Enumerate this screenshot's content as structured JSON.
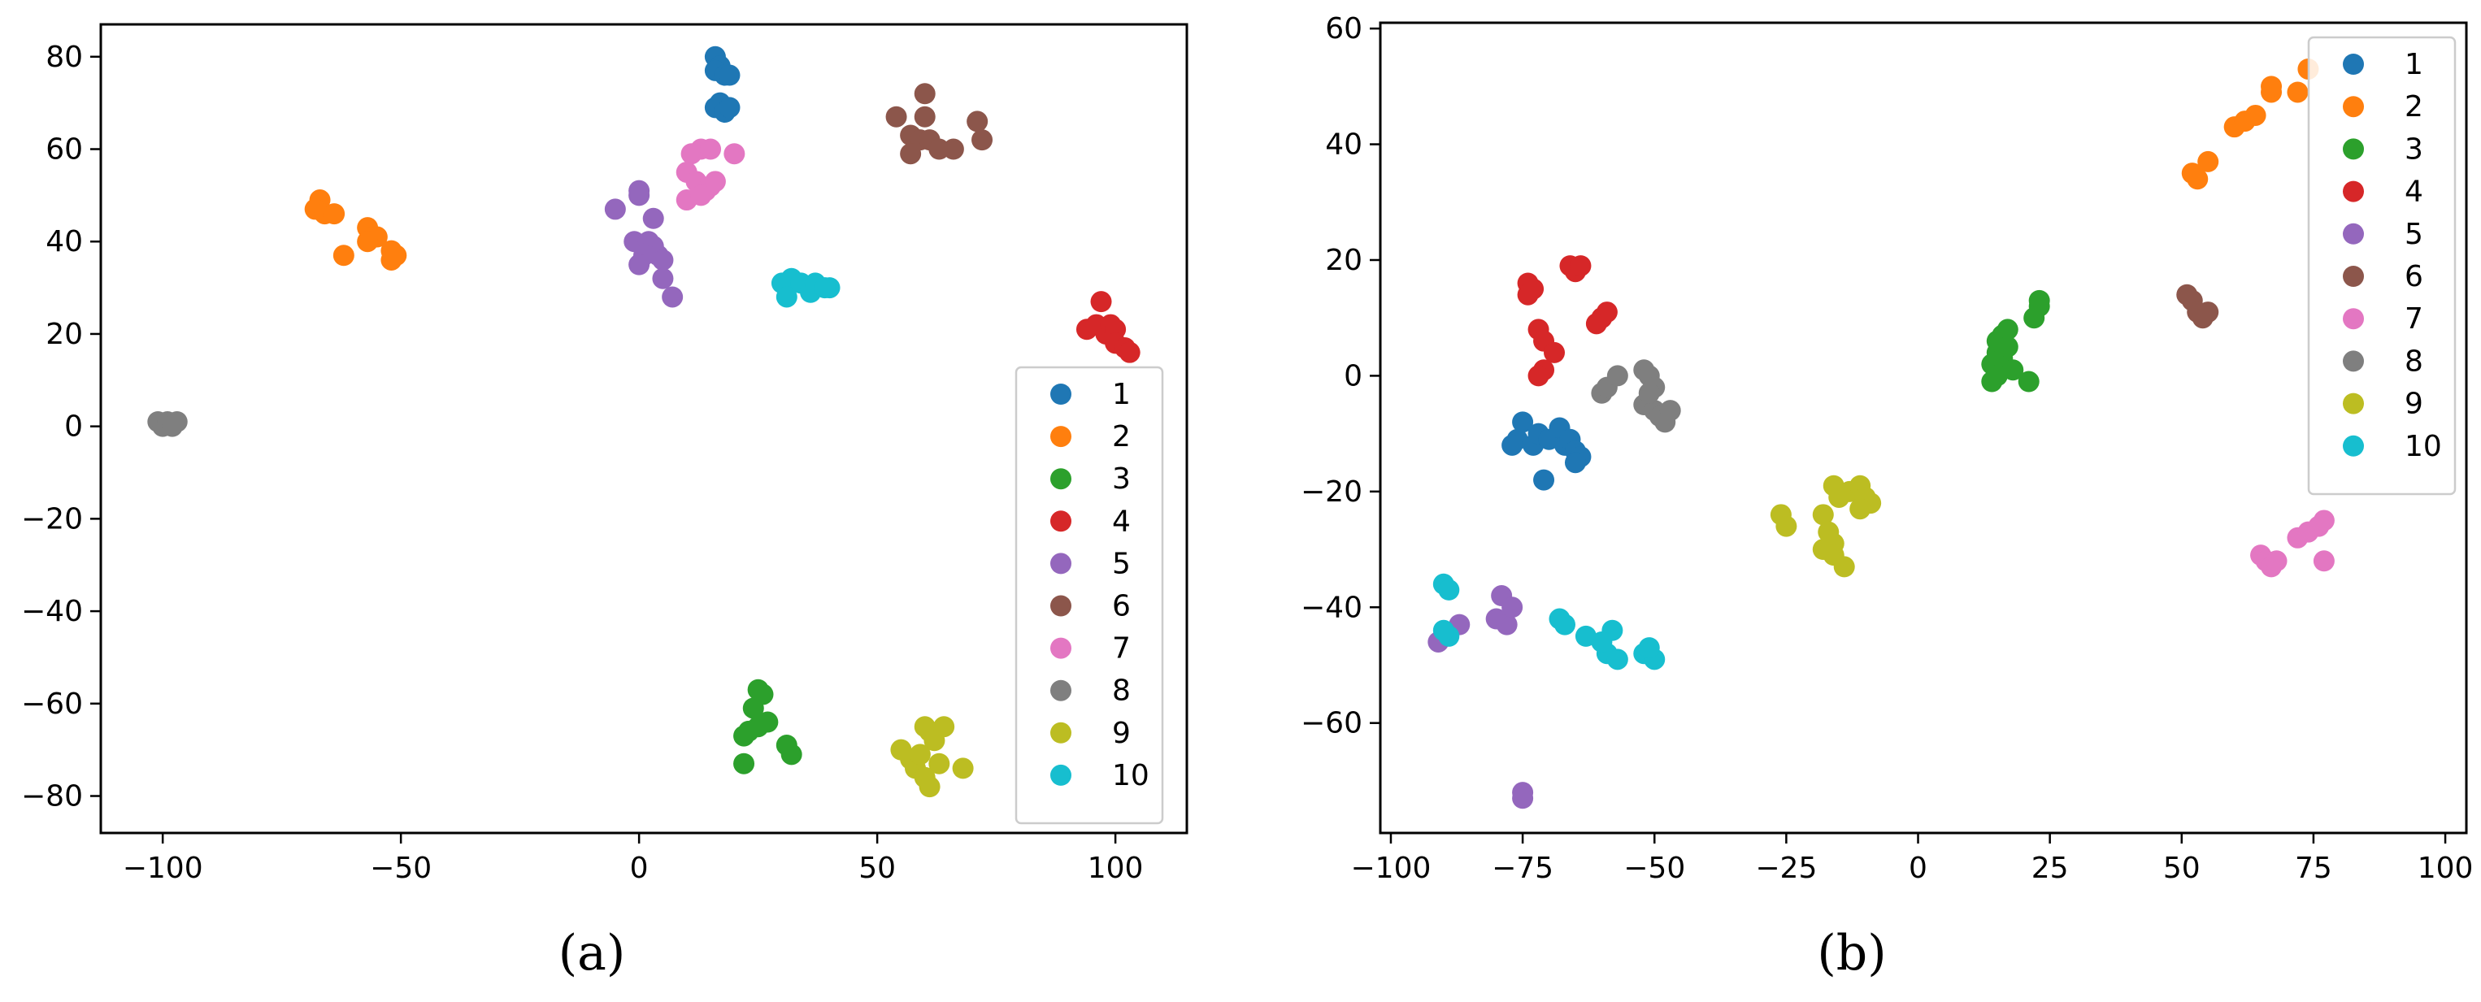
{
  "captions": {
    "a": "(a)",
    "b": "(b)"
  },
  "legend_labels": [
    "1",
    "2",
    "3",
    "4",
    "5",
    "6",
    "7",
    "8",
    "9",
    "10"
  ],
  "colors": [
    "#1f77b4",
    "#ff7f0e",
    "#2ca02c",
    "#d62728",
    "#9467bd",
    "#8c564b",
    "#e377c2",
    "#7f7f7f",
    "#bcbd22",
    "#17becf"
  ],
  "chart_data": [
    {
      "type": "scatter",
      "panel": "a",
      "title": "",
      "xlabel": "",
      "ylabel": "",
      "xlim": [
        -113,
        115
      ],
      "ylim": [
        -88,
        87
      ],
      "xticks": [
        -100,
        -50,
        0,
        50,
        100
      ],
      "yticks": [
        80,
        60,
        40,
        20,
        0,
        -20,
        -40,
        -60,
        -80
      ],
      "legend": "right",
      "series": [
        {
          "name": "1",
          "points": [
            [
              16,
              80
            ],
            [
              17,
              78
            ],
            [
              16,
              77
            ],
            [
              18,
              76
            ],
            [
              19,
              76
            ],
            [
              17,
              70
            ],
            [
              16,
              69
            ],
            [
              18,
              68
            ],
            [
              19,
              69
            ]
          ]
        },
        {
          "name": "2",
          "points": [
            [
              -67,
              49
            ],
            [
              -68,
              47
            ],
            [
              -66,
              46
            ],
            [
              -64,
              46
            ],
            [
              -62,
              37
            ],
            [
              -57,
              43
            ],
            [
              -56,
              41
            ],
            [
              -55,
              41
            ],
            [
              -57,
              40
            ],
            [
              -52,
              38
            ],
            [
              -52,
              36
            ],
            [
              -51,
              37
            ]
          ]
        },
        {
          "name": "3",
          "points": [
            [
              25,
              -57
            ],
            [
              26,
              -58
            ],
            [
              24,
              -61
            ],
            [
              27,
              -64
            ],
            [
              25,
              -65
            ],
            [
              23,
              -66
            ],
            [
              22,
              -67
            ],
            [
              22,
              -73
            ],
            [
              31,
              -69
            ],
            [
              32,
              -71
            ]
          ]
        },
        {
          "name": "4",
          "points": [
            [
              97,
              27
            ],
            [
              94,
              21
            ],
            [
              96,
              22
            ],
            [
              98,
              20
            ],
            [
              99,
              22
            ],
            [
              100,
              21
            ],
            [
              100,
              18
            ],
            [
              102,
              17
            ],
            [
              103,
              16
            ]
          ]
        },
        {
          "name": "5",
          "points": [
            [
              -5,
              47
            ],
            [
              0,
              51
            ],
            [
              0,
              50
            ],
            [
              3,
              45
            ],
            [
              -1,
              40
            ],
            [
              2,
              40
            ],
            [
              3,
              39
            ],
            [
              4,
              37
            ],
            [
              1,
              37
            ],
            [
              0,
              35
            ],
            [
              5,
              36
            ],
            [
              5,
              32
            ],
            [
              7,
              28
            ]
          ]
        },
        {
          "name": "6",
          "points": [
            [
              54,
              67
            ],
            [
              60,
              72
            ],
            [
              60,
              67
            ],
            [
              57,
              63
            ],
            [
              59,
              62
            ],
            [
              61,
              62
            ],
            [
              63,
              60
            ],
            [
              57,
              59
            ],
            [
              66,
              60
            ],
            [
              71,
              66
            ],
            [
              72,
              62
            ]
          ]
        },
        {
          "name": "7",
          "points": [
            [
              13,
              60
            ],
            [
              11,
              59
            ],
            [
              15,
              60
            ],
            [
              10,
              55
            ],
            [
              12,
              53
            ],
            [
              15,
              52
            ],
            [
              14,
              51
            ],
            [
              16,
              53
            ],
            [
              20,
              59
            ],
            [
              10,
              49
            ],
            [
              13,
              50
            ]
          ]
        },
        {
          "name": "8",
          "points": [
            [
              -101,
              1
            ],
            [
              -100,
              0
            ],
            [
              -99,
              1
            ],
            [
              -98,
              0
            ],
            [
              -97,
              1
            ]
          ]
        },
        {
          "name": "9",
          "points": [
            [
              55,
              -70
            ],
            [
              57,
              -72
            ],
            [
              58,
              -74
            ],
            [
              60,
              -65
            ],
            [
              61,
              -66
            ],
            [
              62,
              -68
            ],
            [
              63,
              -73
            ],
            [
              60,
              -76
            ],
            [
              61,
              -78
            ],
            [
              64,
              -65
            ],
            [
              68,
              -74
            ],
            [
              59,
              -71
            ]
          ]
        },
        {
          "name": "10",
          "points": [
            [
              30,
              31
            ],
            [
              32,
              32
            ],
            [
              31,
              30
            ],
            [
              31,
              28
            ],
            [
              34,
              31
            ],
            [
              36,
              29
            ],
            [
              37,
              31
            ],
            [
              40,
              30
            ],
            [
              39,
              30
            ]
          ]
        }
      ]
    },
    {
      "type": "scatter",
      "panel": "b",
      "title": "",
      "xlabel": "",
      "ylabel": "",
      "xlim": [
        -102,
        104
      ],
      "ylim": [
        -79,
        61
      ],
      "xticks": [
        -100,
        -75,
        -50,
        -25,
        0,
        25,
        50,
        75,
        100
      ],
      "yticks": [
        60,
        40,
        20,
        0,
        -20,
        -40,
        -60
      ],
      "legend": "top-right",
      "series": [
        {
          "name": "1",
          "points": [
            [
              -76,
              -11
            ],
            [
              -75,
              -8
            ],
            [
              -73,
              -12
            ],
            [
              -72,
              -10
            ],
            [
              -70,
              -11
            ],
            [
              -68,
              -9
            ],
            [
              -67,
              -12
            ],
            [
              -66,
              -11
            ],
            [
              -65,
              -13
            ],
            [
              -64,
              -14
            ],
            [
              -65,
              -15
            ],
            [
              -71,
              -18
            ],
            [
              -77,
              -12
            ]
          ]
        },
        {
          "name": "2",
          "points": [
            [
              52,
              35
            ],
            [
              53,
              34
            ],
            [
              55,
              37
            ],
            [
              60,
              43
            ],
            [
              62,
              44
            ],
            [
              64,
              45
            ],
            [
              67,
              49
            ],
            [
              67,
              50
            ],
            [
              72,
              49
            ],
            [
              74,
              53
            ]
          ]
        },
        {
          "name": "3",
          "points": [
            [
              14,
              2
            ],
            [
              15,
              4
            ],
            [
              15,
              6
            ],
            [
              16,
              7
            ],
            [
              17,
              8
            ],
            [
              16,
              3
            ],
            [
              15,
              0
            ],
            [
              14,
              -1
            ],
            [
              18,
              1
            ],
            [
              21,
              -1
            ],
            [
              22,
              10
            ],
            [
              23,
              13
            ],
            [
              23,
              12
            ],
            [
              17,
              5
            ]
          ]
        },
        {
          "name": "4",
          "points": [
            [
              -74,
              16
            ],
            [
              -74,
              14
            ],
            [
              -73,
              15
            ],
            [
              -66,
              19
            ],
            [
              -65,
              18
            ],
            [
              -64,
              19
            ],
            [
              -60,
              10
            ],
            [
              -59,
              11
            ],
            [
              -61,
              9
            ],
            [
              -72,
              8
            ],
            [
              -71,
              6
            ],
            [
              -69,
              4
            ],
            [
              -71,
              1
            ],
            [
              -72,
              0
            ]
          ]
        },
        {
          "name": "5",
          "points": [
            [
              -91,
              -46
            ],
            [
              -87,
              -43
            ],
            [
              -80,
              -42
            ],
            [
              -79,
              -38
            ],
            [
              -78,
              -43
            ],
            [
              -77,
              -40
            ],
            [
              -75,
              -72
            ],
            [
              -75,
              -73
            ]
          ]
        },
        {
          "name": "6",
          "points": [
            [
              51,
              14
            ],
            [
              52,
              13
            ],
            [
              53,
              11
            ],
            [
              54,
              10
            ],
            [
              55,
              11
            ]
          ]
        },
        {
          "name": "7",
          "points": [
            [
              65,
              -31
            ],
            [
              66,
              -32
            ],
            [
              67,
              -33
            ],
            [
              68,
              -32
            ],
            [
              72,
              -28
            ],
            [
              74,
              -27
            ],
            [
              76,
              -26
            ],
            [
              77,
              -25
            ],
            [
              77,
              -32
            ]
          ]
        },
        {
          "name": "8",
          "points": [
            [
              -60,
              -3
            ],
            [
              -59,
              -2
            ],
            [
              -57,
              0
            ],
            [
              -52,
              1
            ],
            [
              -51,
              0
            ],
            [
              -50,
              -2
            ],
            [
              -52,
              -5
            ],
            [
              -50,
              -6
            ],
            [
              -49,
              -7
            ],
            [
              -48,
              -8
            ],
            [
              -47,
              -6
            ],
            [
              -51,
              -3
            ]
          ]
        },
        {
          "name": "9",
          "points": [
            [
              -26,
              -24
            ],
            [
              -25,
              -26
            ],
            [
              -18,
              -24
            ],
            [
              -17,
              -27
            ],
            [
              -16,
              -29
            ],
            [
              -18,
              -30
            ],
            [
              -16,
              -31
            ],
            [
              -14,
              -33
            ],
            [
              -16,
              -19
            ],
            [
              -13,
              -20
            ],
            [
              -11,
              -19
            ],
            [
              -10,
              -21
            ],
            [
              -9,
              -22
            ],
            [
              -11,
              -23
            ],
            [
              -15,
              -21
            ]
          ]
        },
        {
          "name": "10",
          "points": [
            [
              -68,
              -42
            ],
            [
              -67,
              -43
            ],
            [
              -63,
              -45
            ],
            [
              -58,
              -44
            ],
            [
              -59,
              -48
            ],
            [
              -57,
              -49
            ],
            [
              -52,
              -48
            ],
            [
              -50,
              -49
            ],
            [
              -51,
              -47
            ],
            [
              -60,
              -46
            ],
            [
              -90,
              -36
            ],
            [
              -89,
              -37
            ],
            [
              -89,
              -45
            ],
            [
              -90,
              -44
            ]
          ]
        }
      ]
    }
  ]
}
